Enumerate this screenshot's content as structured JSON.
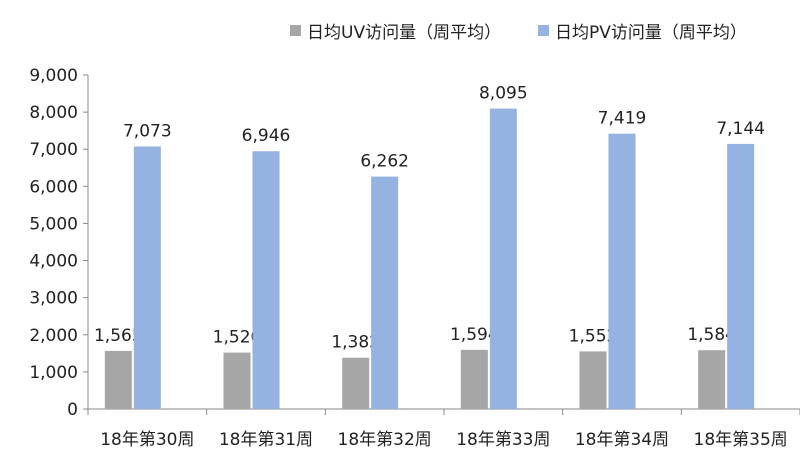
{
  "chart_data": {
    "type": "bar",
    "categories": [
      "18年第30周",
      "18年第31周",
      "18年第32周",
      "18年第33周",
      "18年第34周",
      "18年第35周"
    ],
    "series": [
      {
        "name": "日均UV访问量（周平均）",
        "color": "#a6a6a6",
        "values": [
          1565,
          1520,
          1382,
          1594,
          1552,
          1584
        ]
      },
      {
        "name": "日均PV访问量（周平均）",
        "color": "#95b3e0",
        "values": [
          7073,
          6946,
          6262,
          8095,
          7419,
          7144
        ]
      }
    ],
    "ylim": [
      0,
      9000
    ],
    "yticks": [
      0,
      1000,
      2000,
      3000,
      4000,
      5000,
      6000,
      7000,
      8000,
      9000
    ],
    "ytick_labels": [
      "0",
      "1,000",
      "2,000",
      "3,000",
      "4,000",
      "5,000",
      "6,000",
      "7,000",
      "8,000",
      "9,000"
    ],
    "data_labels": [
      [
        "1,565",
        "1,520",
        "1,382",
        "1,594",
        "1,552",
        "1,584"
      ],
      [
        "7,073",
        "6,946",
        "6,262",
        "8,095",
        "7,419",
        "7,144"
      ]
    ],
    "legend_position": "top",
    "grid": false
  }
}
